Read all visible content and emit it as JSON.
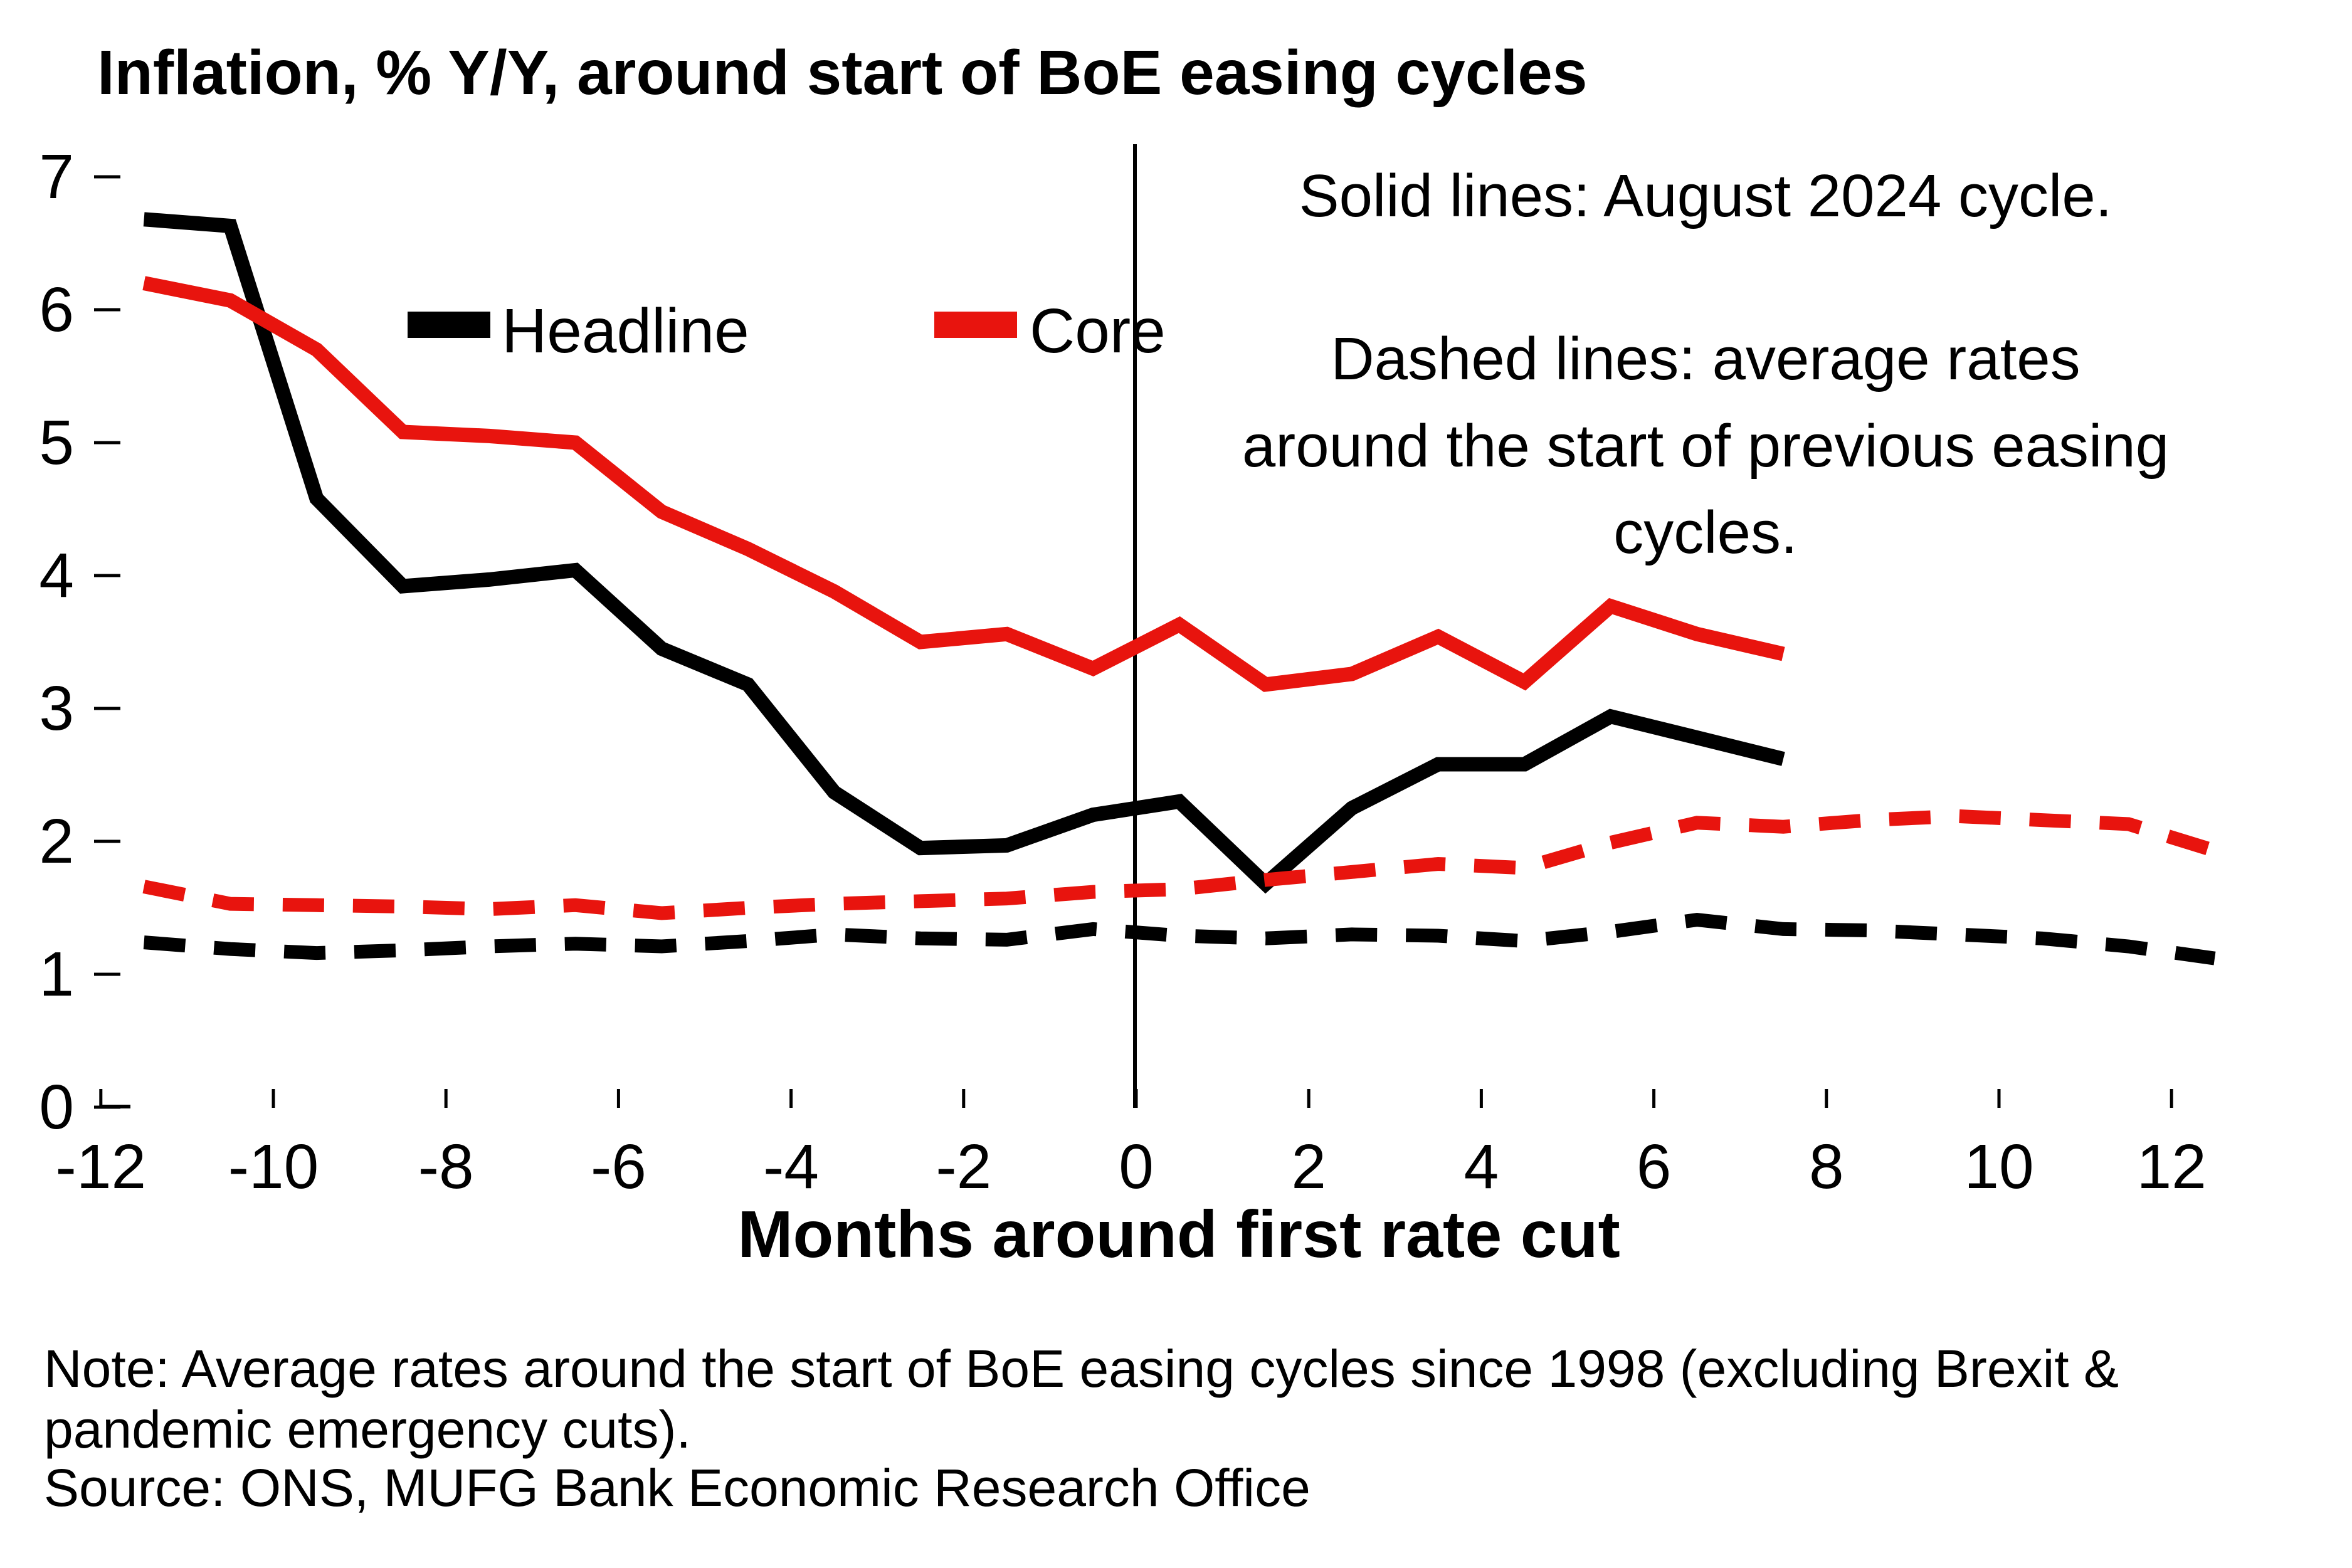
{
  "title": "Inflation, % Y/Y, around start of BoE easing cycles",
  "legend": {
    "headline_label": "Headline",
    "core_label": "Core"
  },
  "annotations": {
    "solid_note": "Solid lines: August 2024 cycle.",
    "dashed_note_line1": "Dashed lines: average rates",
    "dashed_note_line2": "around the start of previous easing",
    "dashed_note_line3": "cycles."
  },
  "x_axis": {
    "title": "Months around first rate cut",
    "ticks": [
      -12,
      -10,
      -8,
      -6,
      -4,
      -2,
      0,
      2,
      4,
      6,
      8,
      10,
      12
    ]
  },
  "y_axis": {
    "ticks": [
      0,
      1,
      2,
      3,
      4,
      5,
      6,
      7
    ]
  },
  "footer": {
    "note_line1": "Note: Average rates around the start of BoE easing cycles since 1998 (excluding Brexit &",
    "note_line2": "pandemic emergency cuts).",
    "source": "Source: ONS, MUFG Bank Economic Research Office"
  },
  "colors": {
    "headline": "#000000",
    "core": "#e8140e"
  },
  "chart_data": {
    "type": "line",
    "title": "Inflation, % Y/Y, around start of BoE easing cycles",
    "xlabel": "Months around first rate cut",
    "ylabel": "",
    "xlim": [
      -12.7,
      13.2
    ],
    "ylim": [
      0,
      7.3
    ],
    "grid": false,
    "legend_position": "top-left-inside",
    "vertical_reference_line_x": 0,
    "series": [
      {
        "name": "Headline (solid, August 2024 cycle)",
        "style": "solid",
        "color": "#000000",
        "x": [
          -11.5,
          -10.5,
          -9.5,
          -8.5,
          -7.5,
          -6.5,
          -5.5,
          -4.5,
          -3.5,
          -2.5,
          -1.5,
          -0.5,
          0.5,
          1.5,
          2.5,
          3.5,
          4.5,
          5.5,
          6.5,
          7.5
        ],
        "values": [
          6.68,
          6.63,
          4.58,
          3.92,
          3.97,
          4.04,
          3.45,
          3.18,
          2.37,
          1.95,
          1.97,
          2.2,
          2.3,
          1.68,
          2.25,
          2.58,
          2.58,
          2.94,
          2.78,
          2.62
        ]
      },
      {
        "name": "Core (solid, August 2024 cycle)",
        "style": "solid",
        "color": "#e8140e",
        "x": [
          -11.5,
          -10.5,
          -9.5,
          -8.5,
          -7.5,
          -6.5,
          -5.5,
          -4.5,
          -3.5,
          -2.5,
          -1.5,
          -0.5,
          0.5,
          1.5,
          2.5,
          3.5,
          4.5,
          5.5,
          6.5,
          7.5
        ],
        "values": [
          6.2,
          6.07,
          5.7,
          5.08,
          5.05,
          5.0,
          4.48,
          4.2,
          3.88,
          3.5,
          3.56,
          3.3,
          3.63,
          3.18,
          3.26,
          3.54,
          3.2,
          3.77,
          3.56,
          3.41
        ]
      },
      {
        "name": "Headline (dashed, average of previous easing cycles)",
        "style": "dashed",
        "color": "#000000",
        "x": [
          -11.5,
          -10.5,
          -9.5,
          -8.5,
          -7.5,
          -6.5,
          -5.5,
          -4.5,
          -3.5,
          -2.5,
          -1.5,
          -0.5,
          0.5,
          1.5,
          2.5,
          3.5,
          4.5,
          5.5,
          6.5,
          7.5,
          8.5,
          9.5,
          10.5,
          11.5,
          12.5
        ],
        "values": [
          1.24,
          1.19,
          1.16,
          1.18,
          1.21,
          1.23,
          1.21,
          1.25,
          1.3,
          1.27,
          1.26,
          1.34,
          1.29,
          1.27,
          1.3,
          1.29,
          1.25,
          1.32,
          1.41,
          1.34,
          1.33,
          1.3,
          1.27,
          1.21,
          1.12
        ]
      },
      {
        "name": "Core (dashed, average of previous easing cycles)",
        "style": "dashed",
        "color": "#e8140e",
        "x": [
          -11.5,
          -10.5,
          -9.5,
          -8.5,
          -7.5,
          -6.5,
          -5.5,
          -4.5,
          -3.5,
          -2.5,
          -1.5,
          -0.5,
          0.5,
          1.5,
          2.5,
          3.5,
          4.5,
          5.5,
          6.5,
          7.5,
          8.5,
          9.5,
          10.5,
          11.5,
          12.5
        ],
        "values": [
          1.66,
          1.53,
          1.52,
          1.51,
          1.49,
          1.52,
          1.46,
          1.5,
          1.53,
          1.55,
          1.57,
          1.62,
          1.64,
          1.71,
          1.77,
          1.83,
          1.8,
          1.99,
          2.14,
          2.11,
          2.16,
          2.19,
          2.16,
          2.13,
          1.93
        ]
      }
    ]
  }
}
